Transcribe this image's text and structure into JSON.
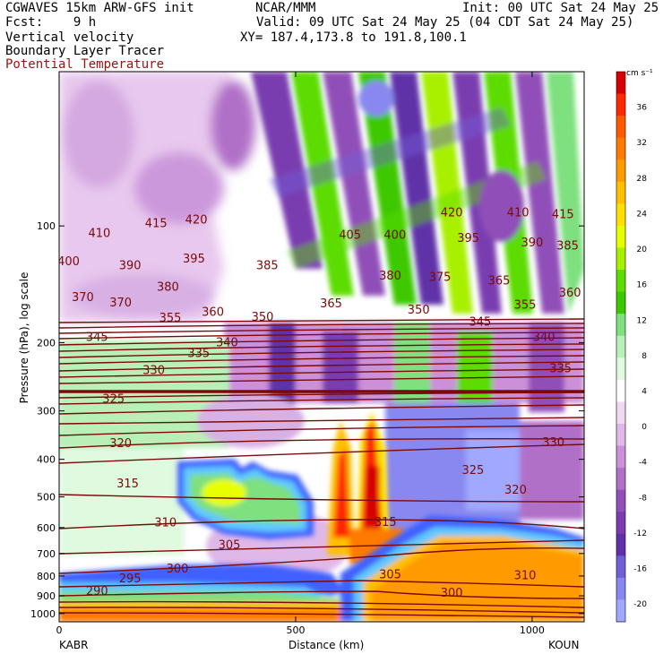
{
  "header": {
    "model": "CGWAVES 15km ARW-GFS init",
    "org": "NCAR/MMM",
    "init": "Init: 00 UTC Sat 24 May 25",
    "fcst": "Fcst:    9 h",
    "valid": "Valid: 09 UTC Sat 24 May 25 (04 CDT Sat 24 May 25)",
    "field1": "Vertical velocity",
    "field2": "Boundary Layer Tracer",
    "field3": "Potential Temperature",
    "xy": "XY= 187.4,173.8 to 191.8,100.1"
  },
  "colors": {
    "theta_line": "#7a0a0a",
    "field3_text": "#9b1111"
  },
  "chart_data": {
    "type": "heatmap",
    "title": "Vertical velocity",
    "xlabel": "Distance (km)",
    "ylabel": "Pressure (hPa), log scale",
    "xlim": [
      0,
      1110
    ],
    "ylim_hPa": [
      1050,
      40
    ],
    "y_scale": "log",
    "x_ticks": [
      0,
      500,
      1000
    ],
    "y_ticks": [
      100,
      200,
      300,
      400,
      500,
      600,
      700,
      800,
      900,
      1000
    ],
    "endpoint_left": "KABR",
    "endpoint_right": "KOUN",
    "colorbar": {
      "unit": "cm s⁻¹",
      "ticks": [
        36,
        32,
        28,
        24,
        20,
        16,
        12,
        8,
        4,
        0,
        -4,
        -8,
        -12,
        -16,
        -20
      ],
      "colors": [
        "#d70000",
        "#ff2800",
        "#ff5a00",
        "#ff7a00",
        "#ff9a00",
        "#ffc000",
        "#ffe000",
        "#e8ff00",
        "#a8f000",
        "#5cdc00",
        "#3cc800",
        "#7ee07e",
        "#b8f0b8",
        "#e0fae0",
        "#ffffff",
        "#f0d8f0",
        "#e0b8e8",
        "#cc90d8",
        "#b070c8",
        "#9050b8",
        "#7a3cb0",
        "#6030a8",
        "#7060d8",
        "#8888f0",
        "#a0a8ff"
      ]
    },
    "theta_labels": [
      {
        "v": "420",
        "x": 290,
        "p": 96
      },
      {
        "v": "415",
        "x": 205,
        "p": 98
      },
      {
        "v": "410",
        "x": 85,
        "p": 104
      },
      {
        "v": "420",
        "x": 830,
        "p": 92
      },
      {
        "v": "410",
        "x": 970,
        "p": 92
      },
      {
        "v": "415",
        "x": 1065,
        "p": 93
      },
      {
        "v": "405",
        "x": 615,
        "p": 105
      },
      {
        "v": "400",
        "x": 710,
        "p": 105
      },
      {
        "v": "395",
        "x": 865,
        "p": 107
      },
      {
        "v": "390",
        "x": 1000,
        "p": 110
      },
      {
        "v": "385",
        "x": 1075,
        "p": 112
      },
      {
        "v": "400",
        "x": 20,
        "p": 123
      },
      {
        "v": "390",
        "x": 150,
        "p": 126
      },
      {
        "v": "395",
        "x": 285,
        "p": 121
      },
      {
        "v": "385",
        "x": 440,
        "p": 126
      },
      {
        "v": "380",
        "x": 700,
        "p": 134
      },
      {
        "v": "375",
        "x": 805,
        "p": 135
      },
      {
        "v": "365",
        "x": 930,
        "p": 138
      },
      {
        "v": "380",
        "x": 230,
        "p": 143
      },
      {
        "v": "370",
        "x": 50,
        "p": 152
      },
      {
        "v": "370",
        "x": 130,
        "p": 157
      },
      {
        "v": "360",
        "x": 1080,
        "p": 148
      },
      {
        "v": "365",
        "x": 575,
        "p": 158
      },
      {
        "v": "360",
        "x": 325,
        "p": 166
      },
      {
        "v": "355",
        "x": 235,
        "p": 172
      },
      {
        "v": "350",
        "x": 430,
        "p": 171
      },
      {
        "v": "350",
        "x": 760,
        "p": 164
      },
      {
        "v": "355",
        "x": 985,
        "p": 159
      },
      {
        "v": "345",
        "x": 890,
        "p": 176
      },
      {
        "v": "345",
        "x": 80,
        "p": 193
      },
      {
        "v": "340",
        "x": 355,
        "p": 199
      },
      {
        "v": "340",
        "x": 1025,
        "p": 193
      },
      {
        "v": "335",
        "x": 295,
        "p": 212
      },
      {
        "v": "330",
        "x": 200,
        "p": 235
      },
      {
        "v": "335",
        "x": 1060,
        "p": 232
      },
      {
        "v": "325",
        "x": 115,
        "p": 278
      },
      {
        "v": "330",
        "x": 1045,
        "p": 360
      },
      {
        "v": "320",
        "x": 130,
        "p": 362
      },
      {
        "v": "325",
        "x": 875,
        "p": 425
      },
      {
        "v": "320",
        "x": 965,
        "p": 478
      },
      {
        "v": "315",
        "x": 145,
        "p": 460
      },
      {
        "v": "315",
        "x": 690,
        "p": 578
      },
      {
        "v": "310",
        "x": 225,
        "p": 580
      },
      {
        "v": "305",
        "x": 360,
        "p": 662
      },
      {
        "v": "300",
        "x": 250,
        "p": 762
      },
      {
        "v": "295",
        "x": 150,
        "p": 810
      },
      {
        "v": "290",
        "x": 80,
        "p": 872
      },
      {
        "v": "305",
        "x": 700,
        "p": 790
      },
      {
        "v": "310",
        "x": 985,
        "p": 795
      },
      {
        "v": "300",
        "x": 830,
        "p": 880
      }
    ]
  }
}
